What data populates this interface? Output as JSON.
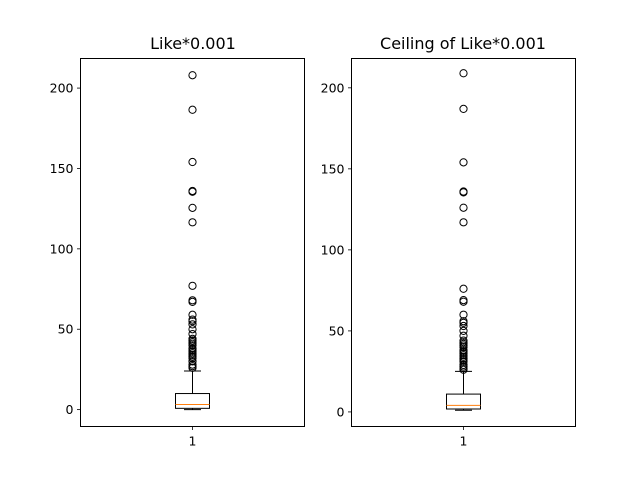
{
  "chart_data": [
    {
      "type": "box",
      "title": "Like*0.001",
      "categories": [
        "1"
      ],
      "y_ticks": [
        0,
        50,
        100,
        150,
        200
      ],
      "ylim": [
        -10.5,
        218.4
      ],
      "box": {
        "whisker_low": 0,
        "q1": 0.8,
        "median": 3.2,
        "q3": 10.0,
        "whisker_high": 24
      },
      "outliers": [
        26,
        27,
        28,
        30,
        32,
        33,
        34,
        35,
        36,
        37,
        38,
        40,
        41,
        42,
        43,
        44,
        47,
        50,
        53,
        55,
        56,
        59,
        67,
        68,
        77,
        116.5,
        125.5,
        135.5,
        136,
        154,
        186.5,
        208
      ]
    },
    {
      "type": "box",
      "title": "Ceiling of Like*0.001",
      "categories": [
        "1"
      ],
      "y_ticks": [
        0,
        50,
        100,
        150,
        200
      ],
      "ylim": [
        -9.0,
        218.1
      ],
      "box": {
        "whisker_low": 1,
        "q1": 1.8,
        "median": 4.0,
        "q3": 11.0,
        "whisker_high": 25
      },
      "outliers": [
        26,
        27,
        28,
        29,
        31,
        32,
        33,
        34,
        35,
        36,
        37,
        38,
        40,
        41,
        42,
        43,
        44,
        47,
        50,
        53,
        55,
        56,
        60,
        68,
        69,
        76,
        117,
        126,
        135.5,
        136,
        154,
        187,
        209
      ]
    }
  ]
}
